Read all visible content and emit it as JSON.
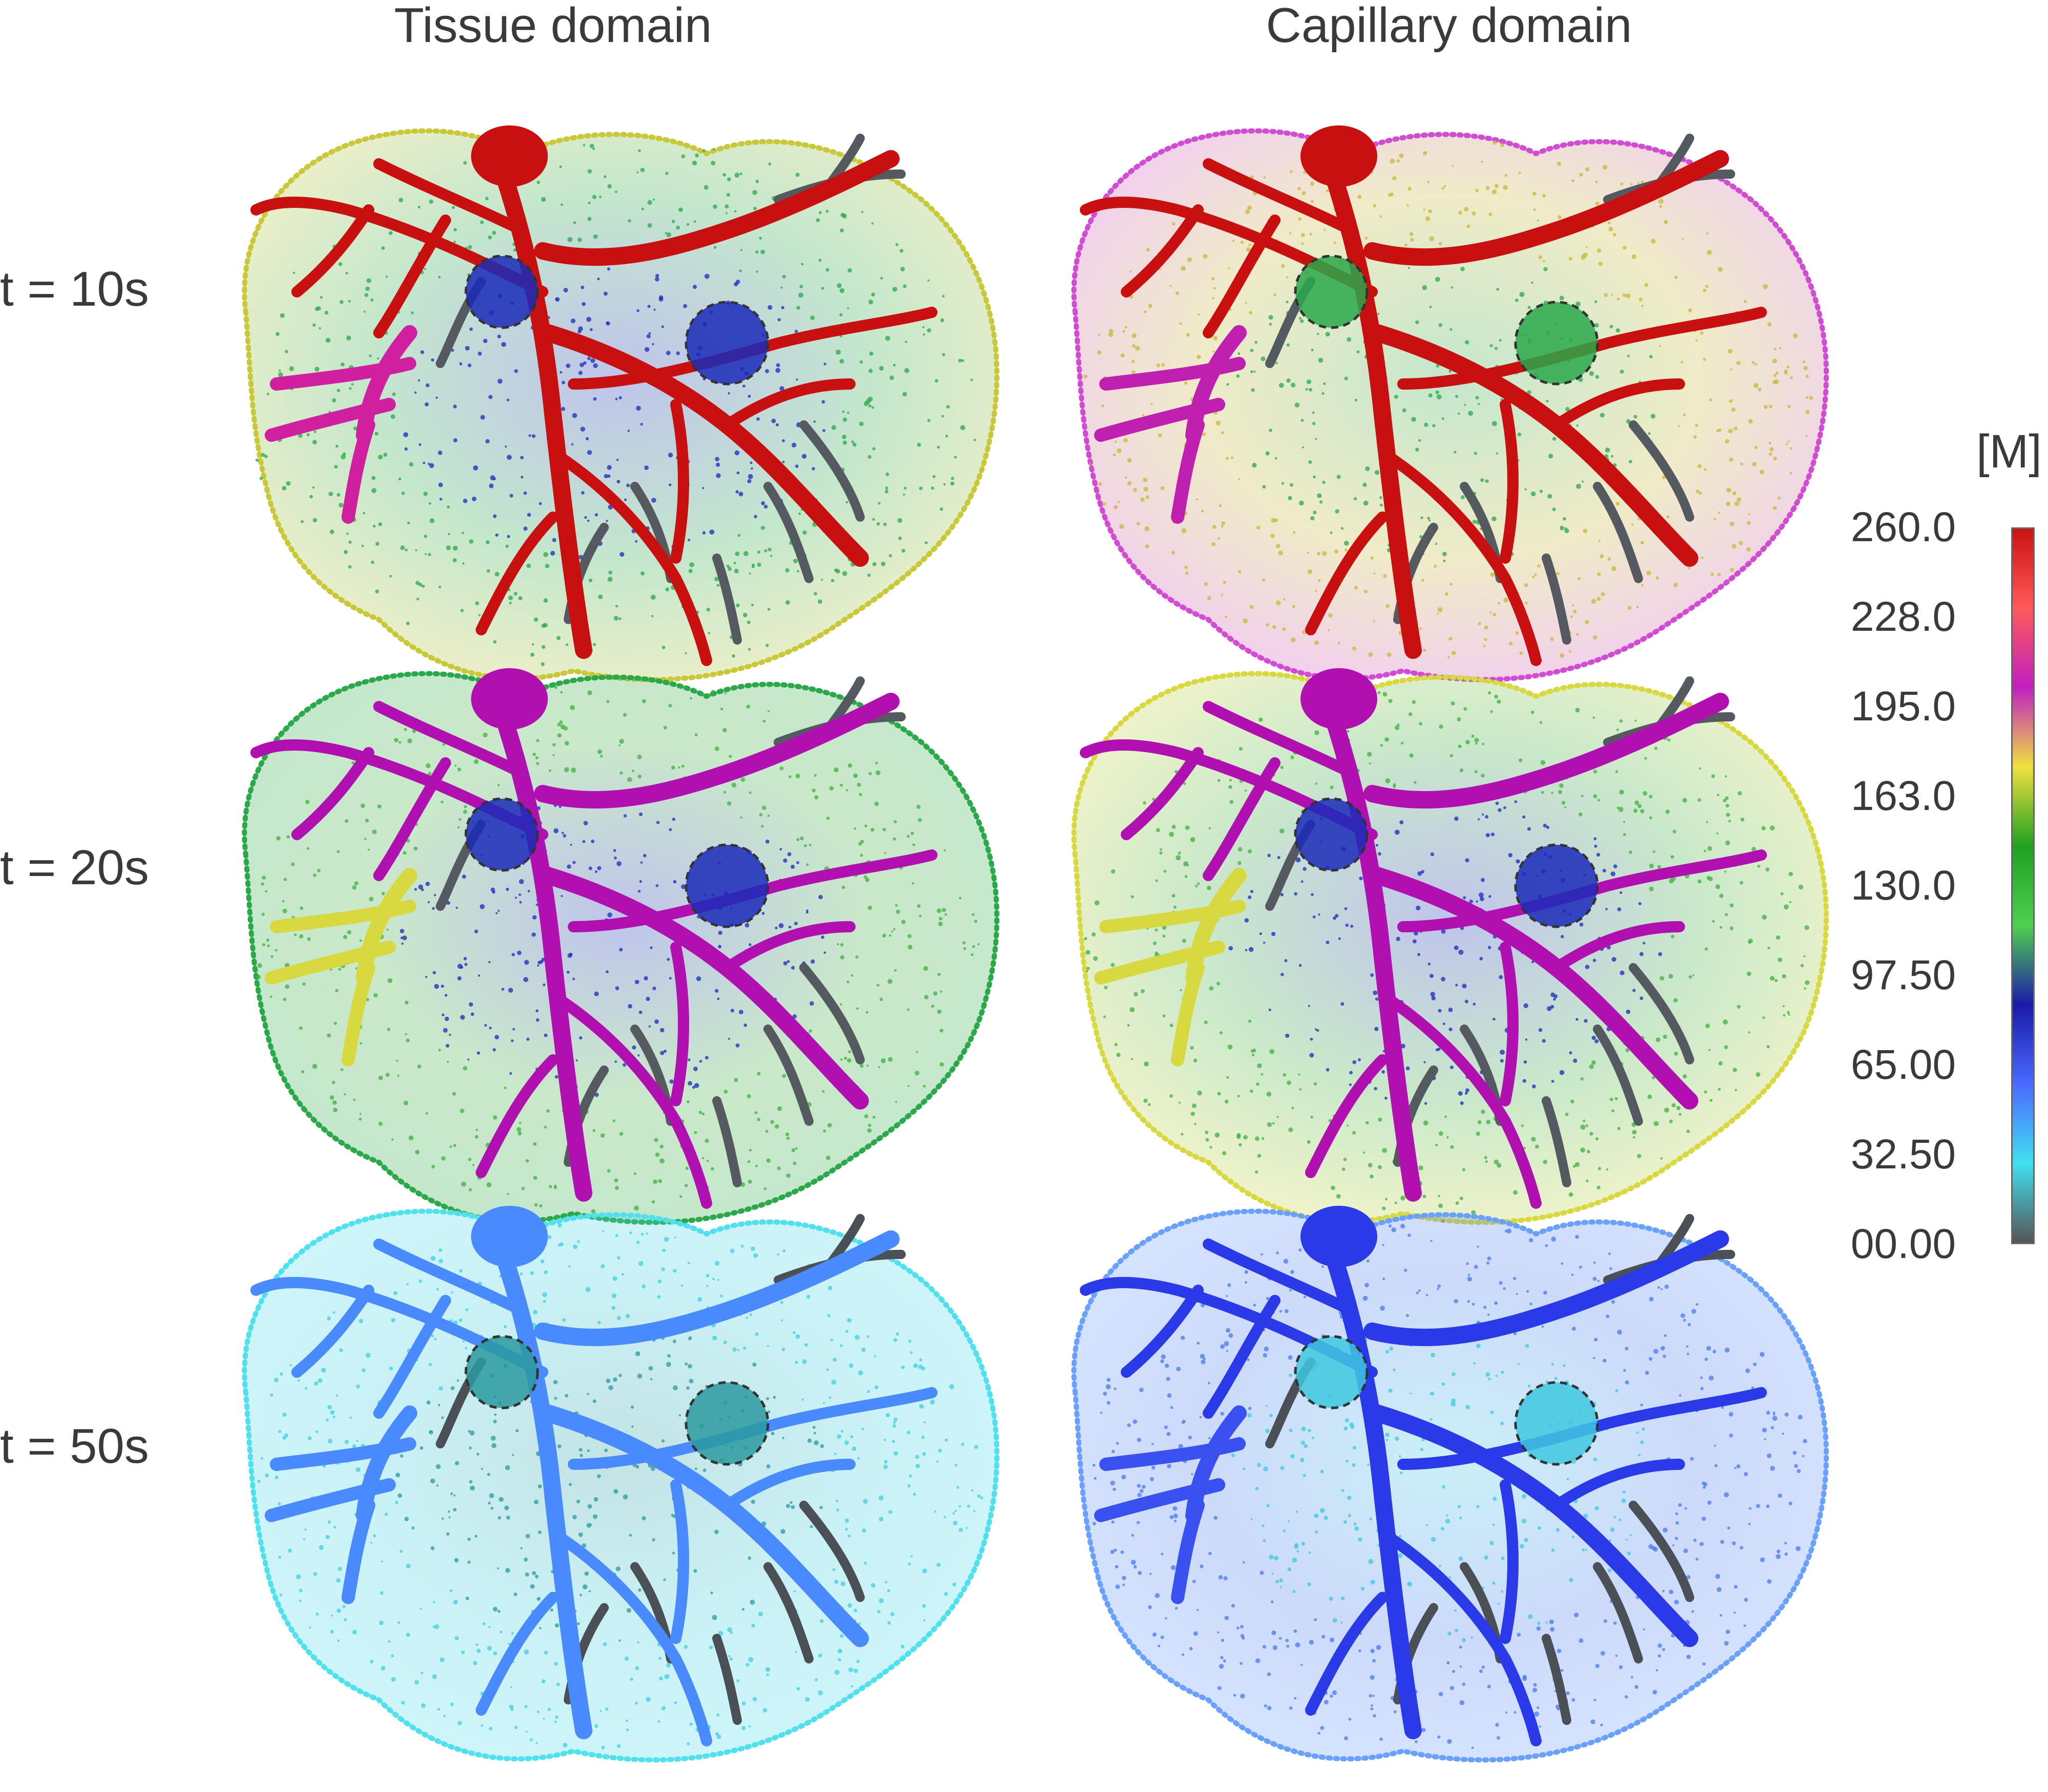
{
  "columns": [
    "Tissue domain",
    "Capillary domain"
  ],
  "rows": [
    "t = 10s",
    "t = 20s",
    "t = 50s"
  ],
  "colorbar": {
    "unit": "[M]",
    "ticks": [
      "260.0",
      "228.0",
      "195.0",
      "163.0",
      "130.0",
      "97.50",
      "65.00",
      "32.50",
      "00.00"
    ],
    "stops": [
      "#cc1111",
      "#ff5a5a",
      "#c020c0",
      "#f0e040",
      "#20a020",
      "#50d050",
      "#1a1aa8",
      "#4a6aff",
      "#40e0f0",
      "#555555"
    ]
  },
  "panels": [
    {
      "tissue": "#2aa84a",
      "edge": "#c8c838",
      "hot": "#1a2ab8",
      "vessel": "#c81010",
      "branch": "#d020a0",
      "dark": "#555a60"
    },
    {
      "tissue": "#c8b838",
      "edge": "#d04cd0",
      "hot": "#2aa84a",
      "vessel": "#c81010",
      "branch": "#c020b0",
      "dark": "#555a60"
    },
    {
      "tissue": "#40b040",
      "edge": "#2aa84a",
      "hot": "#1a2ab8",
      "vessel": "#b010b0",
      "branch": "#d8d840",
      "dark": "#555a60"
    },
    {
      "tissue": "#40b040",
      "edge": "#d8d840",
      "hot": "#1a2ab8",
      "vessel": "#b010b0",
      "branch": "#d8d840",
      "dark": "#555a60"
    },
    {
      "tissue": "#40d0e0",
      "edge": "#50e0ee",
      "hot": "#2a9aa0",
      "vessel": "#4a8aff",
      "branch": "#4a8aff",
      "dark": "#4a5055"
    },
    {
      "tissue": "#4a7aee",
      "edge": "#6aa0ff",
      "hot": "#40c8e0",
      "vessel": "#2a3ae8",
      "branch": "#3a50f0",
      "dark": "#4a5055"
    }
  ]
}
